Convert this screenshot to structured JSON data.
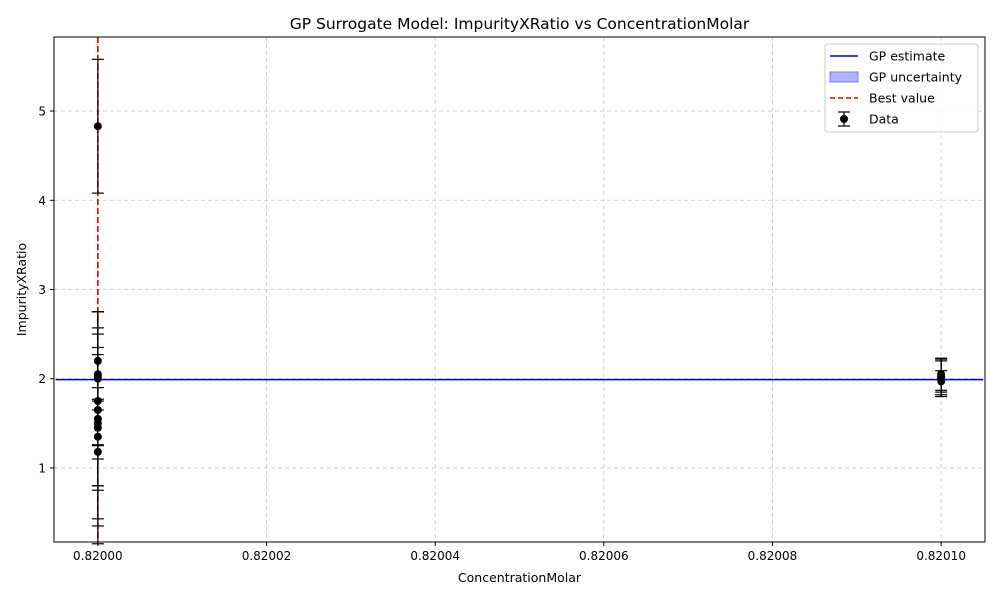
{
  "chart_data": {
    "type": "scatter",
    "title": "GP Surrogate Model: ImpurityXRatio vs ConcentrationMolar",
    "xlabel": "ConcentrationMolar",
    "ylabel": "ImpurityXRatio",
    "xlim": [
      0.8199948,
      0.8201052
    ],
    "ylim": [
      0.17,
      5.83
    ],
    "x_ticks": [
      0.82,
      0.82002,
      0.82004,
      0.82006,
      0.82008,
      0.8201
    ],
    "x_tick_labels": [
      "0.82000",
      "0.82002",
      "0.82004",
      "0.82006",
      "0.82008",
      "0.82010"
    ],
    "y_ticks": [
      1,
      2,
      3,
      4,
      5
    ],
    "y_tick_labels": [
      "1",
      "2",
      "3",
      "4",
      "5"
    ],
    "grid": true,
    "legend_position": "top-right",
    "legend": [
      {
        "label": "GP estimate",
        "kind": "line",
        "color": "#0000cc"
      },
      {
        "label": "GP uncertainty",
        "kind": "patch",
        "color": "#b3b3ff"
      },
      {
        "label": "Best value",
        "kind": "dashed",
        "color": "#dd0000"
      },
      {
        "label": "Data",
        "kind": "errorbar",
        "color": "#000000"
      }
    ],
    "gp_estimate": {
      "x": [
        0.819995,
        0.820105
      ],
      "y": [
        1.99,
        1.99
      ]
    },
    "best_value_x": 0.82,
    "data": [
      {
        "x": 0.82,
        "y": 4.83,
        "err": 0.75
      },
      {
        "x": 0.82,
        "y": 2.2,
        "err": 0.55
      },
      {
        "x": 0.82,
        "y": 2.05,
        "err": 0.3
      },
      {
        "x": 0.82,
        "y": 2.02,
        "err": 0.25
      },
      {
        "x": 0.82,
        "y": 2.0,
        "err": 0.75
      },
      {
        "x": 0.82,
        "y": 1.75,
        "err": 1.0
      },
      {
        "x": 0.82,
        "y": 1.65,
        "err": 0.85
      },
      {
        "x": 0.82,
        "y": 1.55,
        "err": 1.2
      },
      {
        "x": 0.82,
        "y": 1.5,
        "err": 1.07
      },
      {
        "x": 0.82,
        "y": 1.45,
        "err": 1.3
      },
      {
        "x": 0.82,
        "y": 1.35,
        "err": 0.55
      },
      {
        "x": 0.82,
        "y": 1.18,
        "err": 0.08
      },
      {
        "x": 0.8201,
        "y": 2.05,
        "err": 0.18
      },
      {
        "x": 0.8201,
        "y": 2.02,
        "err": 0.2
      },
      {
        "x": 0.8201,
        "y": 2.0,
        "err": 0.2
      },
      {
        "x": 0.8201,
        "y": 1.97,
        "err": 0.12
      }
    ],
    "colors": {
      "gp_line": "#0000cc",
      "best_line": "#dd0000",
      "points": "#000000",
      "grid": "#c8c8c8"
    }
  }
}
